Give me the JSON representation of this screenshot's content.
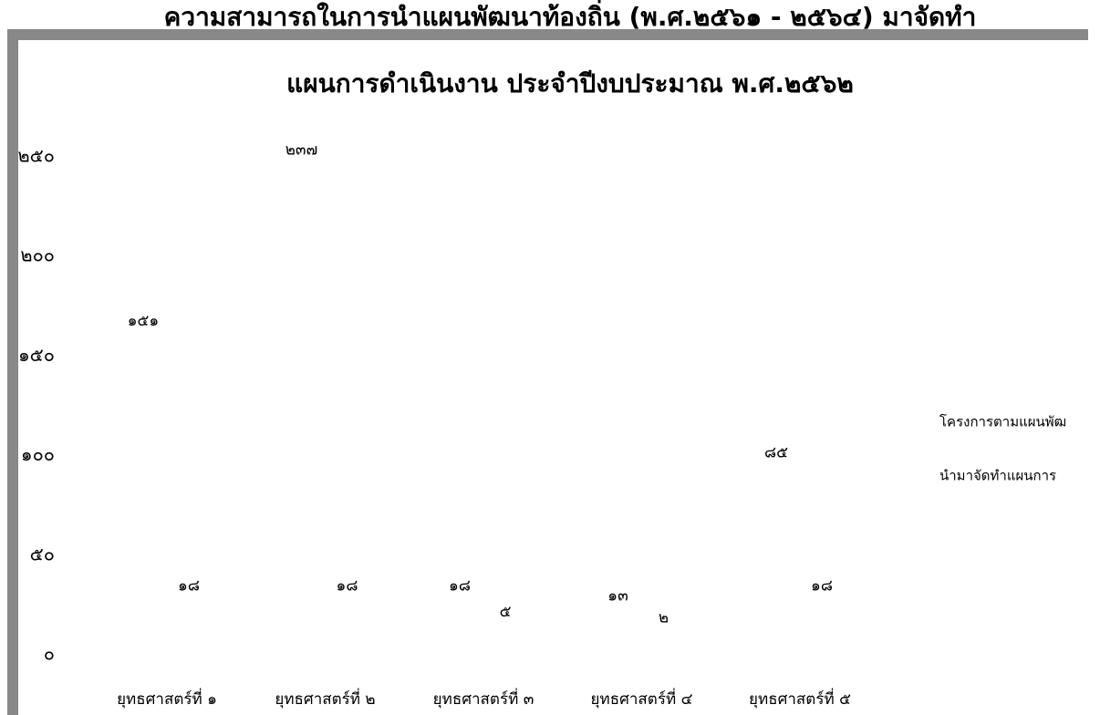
{
  "chart_data": {
    "type": "bar",
    "title": [
      "ความสามารถในการนำแผนพัฒนาท้องถิ่น (พ.ศ.๒๕๖๑ - ๒๕๖๔) มาจัดทำ",
      "แผนการดำเนินงาน ประจำปีงบประมาณ พ.ศ.๒๕๖๒"
    ],
    "categories": [
      "ยุทธศาสตร์ที่ ๑",
      "ยุทธศาสตร์ที่ ๒",
      "ยุทธศาสตร์ที่ ๓",
      "ยุทธศาสตร์ที่ ๔",
      "ยุทธศาสตร์ที่ ๕"
    ],
    "series": [
      {
        "name": "โครงการตามแผนพัฒ",
        "values": [
          151,
          237,
          18,
          13,
          85
        ],
        "value_labels": [
          "๑๕๑",
          "๒๓๗",
          "๑๘",
          "๑๓",
          "๘๕"
        ]
      },
      {
        "name": "นำมาจัดทำแผนการ",
        "values": [
          18,
          18,
          5,
          2,
          18
        ],
        "value_labels": [
          "๑๘",
          "๑๘",
          "๕",
          "๒",
          "๑๘"
        ]
      }
    ],
    "ylim": [
      0,
      250
    ],
    "yticks": [
      {
        "value": 0,
        "label": "๐"
      },
      {
        "value": 50,
        "label": "๕๐"
      },
      {
        "value": 100,
        "label": "๑๐๐"
      },
      {
        "value": 150,
        "label": "๑๕๐"
      },
      {
        "value": 200,
        "label": "๒๐๐"
      },
      {
        "value": 250,
        "label": "๒๕๐"
      }
    ],
    "grid": false
  }
}
